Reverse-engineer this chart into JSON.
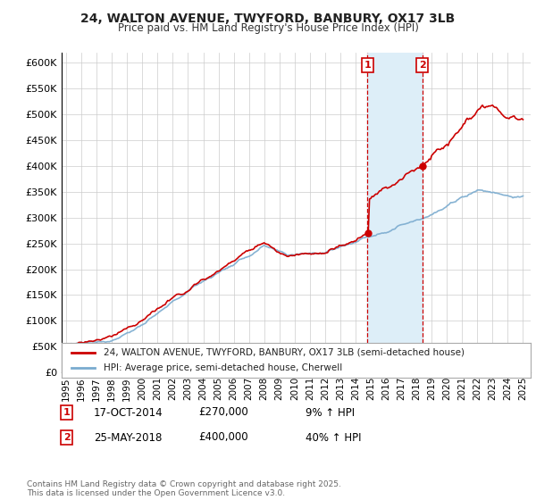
{
  "title": "24, WALTON AVENUE, TWYFORD, BANBURY, OX17 3LB",
  "subtitle": "Price paid vs. HM Land Registry's House Price Index (HPI)",
  "ylim": [
    0,
    620000
  ],
  "yticks": [
    0,
    50000,
    100000,
    150000,
    200000,
    250000,
    300000,
    350000,
    400000,
    450000,
    500000,
    550000,
    600000
  ],
  "ytick_labels": [
    "£0",
    "£50K",
    "£100K",
    "£150K",
    "£200K",
    "£250K",
    "£300K",
    "£350K",
    "£400K",
    "£450K",
    "£500K",
    "£550K",
    "£600K"
  ],
  "xlim_start": 1994.7,
  "xlim_end": 2025.5,
  "red_line_color": "#cc0000",
  "blue_line_color": "#7aabcf",
  "transaction1_year": 2014.79,
  "transaction2_year": 2018.39,
  "transaction1_price": 270000,
  "transaction2_price": 400000,
  "legend_line1": "24, WALTON AVENUE, TWYFORD, BANBURY, OX17 3LB (semi-detached house)",
  "legend_line2": "HPI: Average price, semi-detached house, Cherwell",
  "annotation1_date": "17-OCT-2014",
  "annotation1_price": "£270,000",
  "annotation1_hpi": "9% ↑ HPI",
  "annotation2_date": "25-MAY-2018",
  "annotation2_price": "£400,000",
  "annotation2_hpi": "40% ↑ HPI",
  "footer": "Contains HM Land Registry data © Crown copyright and database right 2025.\nThis data is licensed under the Open Government Licence v3.0.",
  "background_color": "#ffffff",
  "grid_color": "#cccccc",
  "shade_color": "#ddeef8"
}
